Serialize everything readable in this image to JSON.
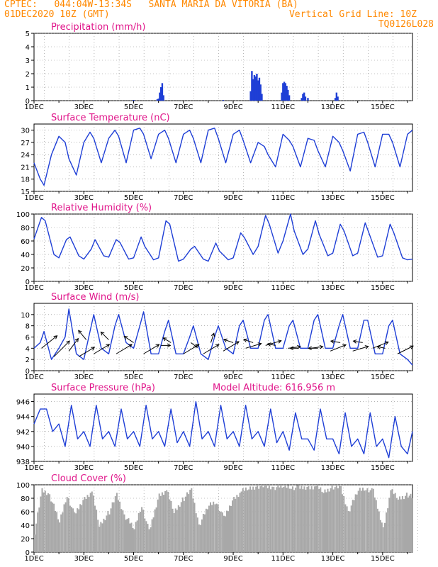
{
  "header": {
    "line1_left": "CPTEC:   044:04W-13:34S   SANTA MARIA DA VITORIA (BA)",
    "line2_left": "01DEC2020 10Z (GMT)",
    "line2_right": "Vertical Grid Line: 10Z",
    "line3_right": "TQ0126L028"
  },
  "colors": {
    "header_text": "#ff8800",
    "panel_title": "#e0158a",
    "series_line": "#1f3fd6",
    "precip_bar": "#1f3fd6",
    "cloud_fill": "#a8a8a8",
    "wind_arrow": "#000000"
  },
  "x_axis": {
    "tick_labels": [
      "1DEC",
      "3DEC",
      "5DEC",
      "7DEC",
      "9DEC",
      "11DEC",
      "13DEC",
      "15DEC"
    ],
    "range_days": [
      1,
      16.2
    ]
  },
  "chart_data": [
    {
      "type": "bar",
      "title": "Precipitation (mm/h)",
      "ylim": [
        0,
        5
      ],
      "yticks": [
        "0",
        "1",
        "2",
        "3",
        "4",
        "5"
      ],
      "bars": [
        {
          "x": 5.95,
          "y": 0.1
        },
        {
          "x": 6.0,
          "y": 0.15
        },
        {
          "x": 6.05,
          "y": 0.6
        },
        {
          "x": 6.1,
          "y": 1.0
        },
        {
          "x": 6.15,
          "y": 1.3
        },
        {
          "x": 6.2,
          "y": 0.4
        },
        {
          "x": 9.7,
          "y": 0.7
        },
        {
          "x": 9.75,
          "y": 2.2
        },
        {
          "x": 9.8,
          "y": 1.6
        },
        {
          "x": 9.85,
          "y": 1.9
        },
        {
          "x": 9.9,
          "y": 1.8
        },
        {
          "x": 9.95,
          "y": 2.0
        },
        {
          "x": 10.0,
          "y": 1.5
        },
        {
          "x": 10.05,
          "y": 1.7
        },
        {
          "x": 10.1,
          "y": 1.2
        },
        {
          "x": 10.15,
          "y": 0.5
        },
        {
          "x": 10.95,
          "y": 0.6
        },
        {
          "x": 11.0,
          "y": 1.3
        },
        {
          "x": 11.05,
          "y": 1.4
        },
        {
          "x": 11.1,
          "y": 1.3
        },
        {
          "x": 11.15,
          "y": 1.1
        },
        {
          "x": 11.2,
          "y": 0.8
        },
        {
          "x": 11.25,
          "y": 0.4
        },
        {
          "x": 11.75,
          "y": 0.2
        },
        {
          "x": 11.8,
          "y": 0.5
        },
        {
          "x": 11.85,
          "y": 0.6
        },
        {
          "x": 11.9,
          "y": 0.3
        },
        {
          "x": 12.0,
          "y": 0.2
        },
        {
          "x": 13.1,
          "y": 0.2
        },
        {
          "x": 13.15,
          "y": 0.6
        },
        {
          "x": 13.2,
          "y": 0.3
        },
        {
          "x": 5.0,
          "y": 0.05
        },
        {
          "x": 8.6,
          "y": 0.05
        }
      ]
    },
    {
      "type": "line",
      "title": "Surface Temperature (nC)",
      "ylim": [
        15,
        31.5
      ],
      "yticks": [
        "15",
        "18",
        "21",
        "24",
        "27",
        "30"
      ],
      "x": [
        1.0,
        1.25,
        1.4,
        1.7,
        2.0,
        2.25,
        2.4,
        2.7,
        3.0,
        3.25,
        3.4,
        3.7,
        4.0,
        4.25,
        4.4,
        4.7,
        5.0,
        5.25,
        5.4,
        5.7,
        6.0,
        6.25,
        6.4,
        6.7,
        7.0,
        7.25,
        7.4,
        7.7,
        8.0,
        8.25,
        8.4,
        8.7,
        9.0,
        9.25,
        9.4,
        9.7,
        10.0,
        10.25,
        10.4,
        10.7,
        11.0,
        11.25,
        11.4,
        11.7,
        12.0,
        12.25,
        12.4,
        12.7,
        13.0,
        13.25,
        13.4,
        13.7,
        14.0,
        14.25,
        14.4,
        14.7,
        15.0,
        15.25,
        15.4,
        15.7,
        16.0,
        16.2
      ],
      "values": [
        22,
        18,
        16.5,
        24,
        28.5,
        27,
        23,
        19,
        27,
        29.5,
        28,
        22,
        28,
        30,
        28.5,
        22,
        30,
        30.5,
        29,
        23,
        29,
        30,
        28,
        22,
        29,
        30,
        28,
        22,
        30,
        30.5,
        28,
        22,
        29,
        30,
        27.5,
        22,
        27,
        26,
        24,
        21,
        29,
        27.5,
        26,
        21,
        28,
        27.5,
        25,
        21,
        28.5,
        27,
        25,
        20,
        29,
        29.5,
        27,
        21,
        29,
        29,
        27,
        21,
        29,
        30
      ]
    },
    {
      "type": "line",
      "title": "Relative Humidity (%)",
      "ylim": [
        0,
        100
      ],
      "yticks": [
        "0",
        "20",
        "40",
        "60",
        "80",
        "100"
      ],
      "x": [
        1.0,
        1.3,
        1.45,
        1.8,
        2.0,
        2.3,
        2.45,
        2.8,
        3.0,
        3.3,
        3.45,
        3.8,
        4.0,
        4.3,
        4.45,
        4.8,
        5.0,
        5.3,
        5.45,
        5.8,
        6.0,
        6.3,
        6.45,
        6.8,
        7.0,
        7.3,
        7.45,
        7.8,
        8.0,
        8.3,
        8.45,
        8.8,
        9.0,
        9.3,
        9.45,
        9.8,
        10.0,
        10.3,
        10.45,
        10.8,
        11.0,
        11.3,
        11.45,
        11.8,
        12.0,
        12.3,
        12.45,
        12.8,
        13.0,
        13.3,
        13.45,
        13.8,
        14.0,
        14.3,
        14.45,
        14.8,
        15.0,
        15.3,
        15.45,
        15.8,
        16.0,
        16.2
      ],
      "values": [
        63,
        95,
        90,
        40,
        35,
        62,
        66,
        38,
        33,
        48,
        62,
        38,
        36,
        62,
        58,
        33,
        35,
        66,
        52,
        32,
        35,
        90,
        85,
        30,
        33,
        48,
        52,
        33,
        30,
        57,
        45,
        32,
        35,
        72,
        65,
        40,
        52,
        98,
        85,
        42,
        60,
        100,
        75,
        40,
        48,
        90,
        70,
        38,
        42,
        85,
        75,
        38,
        42,
        87,
        72,
        36,
        38,
        85,
        72,
        35,
        32,
        33
      ]
    },
    {
      "type": "line",
      "title": "Surface Wind (m/s)",
      "ylim": [
        0,
        12
      ],
      "yticks": [
        "0",
        "2",
        "4",
        "6",
        "8",
        "10"
      ],
      "x": [
        1.0,
        1.25,
        1.4,
        1.7,
        2.0,
        2.25,
        2.4,
        2.7,
        3.0,
        3.25,
        3.4,
        3.7,
        4.0,
        4.25,
        4.4,
        4.7,
        5.0,
        5.25,
        5.4,
        5.7,
        6.0,
        6.25,
        6.4,
        6.7,
        7.0,
        7.25,
        7.4,
        7.7,
        8.0,
        8.25,
        8.4,
        8.7,
        9.0,
        9.25,
        9.4,
        9.7,
        10.0,
        10.25,
        10.4,
        10.7,
        11.0,
        11.25,
        11.4,
        11.7,
        12.0,
        12.25,
        12.4,
        12.7,
        13.0,
        13.25,
        13.4,
        13.7,
        14.0,
        14.25,
        14.4,
        14.7,
        15.0,
        15.25,
        15.4,
        15.7,
        16.0,
        16.2
      ],
      "values": [
        4,
        5,
        7,
        2,
        4,
        6,
        11,
        3,
        2,
        7,
        10,
        4,
        3,
        8,
        10,
        5,
        4,
        8,
        10.5,
        3,
        3,
        7,
        9,
        3,
        3,
        6,
        8,
        3,
        2,
        6,
        8,
        4,
        3,
        8,
        9,
        4,
        4,
        9,
        10,
        4,
        4,
        8,
        9,
        4,
        4,
        9,
        10,
        4,
        4,
        8,
        10,
        4,
        4,
        9,
        9,
        3,
        3,
        8,
        9,
        3,
        2,
        1
      ]
    },
    {
      "type": "line",
      "title": "Surface Pressure (hPa)",
      "annotation": "Model Altitude: 616.956 m",
      "ylim": [
        938,
        947
      ],
      "yticks": [
        "938",
        "940",
        "942",
        "944",
        "946"
      ],
      "x": [
        1.0,
        1.25,
        1.5,
        1.75,
        2.0,
        2.25,
        2.5,
        2.75,
        3.0,
        3.25,
        3.5,
        3.75,
        4.0,
        4.25,
        4.5,
        4.75,
        5.0,
        5.25,
        5.5,
        5.75,
        6.0,
        6.25,
        6.5,
        6.75,
        7.0,
        7.25,
        7.5,
        7.75,
        8.0,
        8.25,
        8.5,
        8.75,
        9.0,
        9.25,
        9.5,
        9.75,
        10.0,
        10.25,
        10.5,
        10.75,
        11.0,
        11.25,
        11.5,
        11.75,
        12.0,
        12.25,
        12.5,
        12.75,
        13.0,
        13.25,
        13.5,
        13.75,
        14.0,
        14.25,
        14.5,
        14.75,
        15.0,
        15.25,
        15.5,
        15.75,
        16.0,
        16.2
      ],
      "values": [
        943,
        945,
        945,
        942,
        943,
        940,
        945.5,
        941,
        942,
        940,
        945.5,
        941,
        942,
        940,
        945,
        941,
        942,
        940,
        945.5,
        941,
        942,
        940,
        945,
        940.5,
        942,
        940,
        946,
        941,
        942,
        940,
        945.5,
        941,
        942,
        940,
        945.5,
        941,
        942,
        940,
        945,
        940.5,
        942,
        939.5,
        944.5,
        941,
        941,
        939.5,
        945,
        941,
        941,
        939,
        944.5,
        940,
        941,
        939,
        944.5,
        940,
        941,
        938.5,
        944,
        940,
        939,
        942
      ]
    },
    {
      "type": "area",
      "title": "Cloud Cover (%)",
      "ylim": [
        0,
        100
      ],
      "yticks": [
        "0",
        "20",
        "40",
        "60",
        "80",
        "100"
      ],
      "x": [
        1.0,
        1.3,
        1.6,
        2.0,
        2.3,
        2.6,
        3.0,
        3.3,
        3.6,
        4.0,
        4.3,
        4.6,
        5.0,
        5.3,
        5.6,
        6.0,
        6.3,
        6.6,
        7.0,
        7.3,
        7.6,
        8.0,
        8.3,
        8.6,
        9.0,
        9.3,
        9.6,
        10.0,
        10.3,
        10.6,
        11.0,
        11.3,
        11.6,
        12.0,
        12.3,
        12.6,
        13.0,
        13.3,
        13.6,
        14.0,
        14.3,
        14.6,
        15.0,
        15.3,
        15.6,
        16.0,
        16.2
      ],
      "values": [
        30,
        92,
        85,
        45,
        85,
        55,
        80,
        90,
        40,
        60,
        85,
        55,
        35,
        70,
        30,
        85,
        92,
        60,
        80,
        92,
        40,
        70,
        75,
        50,
        80,
        90,
        95,
        98,
        97,
        96,
        98,
        97,
        95,
        96,
        98,
        90,
        97,
        95,
        60,
        92,
        95,
        90,
        35,
        92,
        80,
        85,
        80
      ]
    },
    {
      "type": "vector",
      "title": "Surface Wind arrows",
      "vectors": [
        {
          "x": 1.3,
          "y": 4,
          "u": 1,
          "v": 0.8
        },
        {
          "x": 1.8,
          "y": 2.5,
          "u": 1,
          "v": 1
        },
        {
          "x": 2.4,
          "y": 3.5,
          "u": 0.6,
          "v": 0.8
        },
        {
          "x": 2.8,
          "y": 2.5,
          "u": 1,
          "v": 0.6
        },
        {
          "x": 3.1,
          "y": 5.5,
          "u": -0.5,
          "v": 0.6
        },
        {
          "x": 3.4,
          "y": 3,
          "u": 1,
          "v": 0.6
        },
        {
          "x": 4.0,
          "y": 5.5,
          "u": -0.5,
          "v": 0.5
        },
        {
          "x": 4.3,
          "y": 3,
          "u": 1,
          "v": 0.6
        },
        {
          "x": 5.0,
          "y": 5,
          "u": -0.6,
          "v": 0.4
        },
        {
          "x": 5.4,
          "y": 3,
          "u": 1,
          "v": 0.6
        },
        {
          "x": 6.1,
          "y": 4.5,
          "u": 0.6,
          "v": 0
        },
        {
          "x": 6.5,
          "y": 5,
          "u": -0.5,
          "v": 0.3
        },
        {
          "x": 7.0,
          "y": 3,
          "u": 1,
          "v": 0.6
        },
        {
          "x": 7.3,
          "y": 5,
          "u": 0.4,
          "v": -0.3
        },
        {
          "x": 7.8,
          "y": 3,
          "u": 1,
          "v": 0.6
        },
        {
          "x": 8.1,
          "y": 5,
          "u": 0.2,
          "v": 0.6
        },
        {
          "x": 8.6,
          "y": 3.5,
          "u": 1,
          "v": 0.6
        },
        {
          "x": 9.0,
          "y": 5,
          "u": -0.6,
          "v": 0.2
        },
        {
          "x": 9.5,
          "y": 4,
          "u": 1,
          "v": 0.3
        },
        {
          "x": 9.8,
          "y": 5,
          "u": -0.6,
          "v": 0.2
        },
        {
          "x": 10.3,
          "y": 4.5,
          "u": 1,
          "v": 0.3
        },
        {
          "x": 10.7,
          "y": 4.5,
          "u": -0.5,
          "v": 0.1
        },
        {
          "x": 11.2,
          "y": 4,
          "u": 0.8,
          "v": 0.1
        },
        {
          "x": 11.6,
          "y": 4,
          "u": -0.5,
          "v": 0
        },
        {
          "x": 12.1,
          "y": 4,
          "u": 0.8,
          "v": 0.1
        },
        {
          "x": 12.4,
          "y": 4,
          "u": -0.6,
          "v": 0
        },
        {
          "x": 12.9,
          "y": 3.5,
          "u": 1,
          "v": 0.4
        },
        {
          "x": 13.3,
          "y": 5,
          "u": -0.6,
          "v": 0.1
        },
        {
          "x": 13.8,
          "y": 3.5,
          "u": 1,
          "v": 0.3
        },
        {
          "x": 14.2,
          "y": 5,
          "u": -0.6,
          "v": 0.1
        },
        {
          "x": 14.6,
          "y": 4,
          "u": 1,
          "v": 0.4
        },
        {
          "x": 15.1,
          "y": 4,
          "u": -0.5,
          "v": 0.1
        },
        {
          "x": 15.6,
          "y": 3,
          "u": 1,
          "v": 0.5
        }
      ]
    }
  ]
}
